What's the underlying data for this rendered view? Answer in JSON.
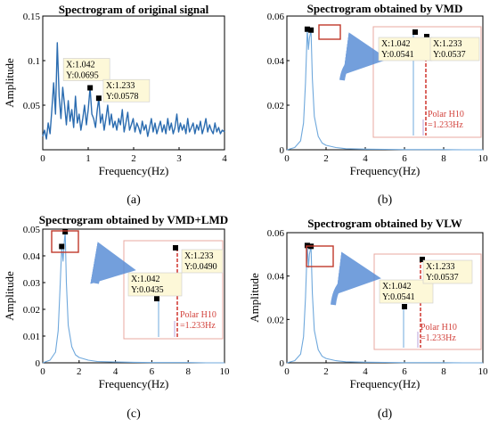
{
  "chart_data": [
    {
      "id": "a",
      "type": "line",
      "panel_label": "(a)",
      "title": "Spectrogram of original signal",
      "xlabel": "Frequency(Hz)",
      "ylabel": "Amplitude",
      "xlim": [
        0,
        4
      ],
      "ylim": [
        0,
        0.15
      ],
      "xticks": [
        0,
        1,
        2,
        3,
        4
      ],
      "xtick_labels": [
        "0",
        "1",
        "2",
        "3",
        "4"
      ],
      "yticks": [
        0.05,
        0.1,
        0.15
      ],
      "ytick_labels": [
        "0.05",
        "0.1",
        "0.15"
      ],
      "grid": false,
      "series": [
        {
          "color": "#2b6cb0",
          "x": [
            0,
            0.04,
            0.08,
            0.12,
            0.16,
            0.2,
            0.24,
            0.28,
            0.32,
            0.36,
            0.4,
            0.44,
            0.48,
            0.52,
            0.56,
            0.6,
            0.64,
            0.68,
            0.72,
            0.76,
            0.8,
            0.84,
            0.88,
            0.92,
            0.96,
            1.0,
            1.042,
            1.08,
            1.12,
            1.16,
            1.2,
            1.233,
            1.27,
            1.31,
            1.35,
            1.39,
            1.43,
            1.47,
            1.51,
            1.55,
            1.59,
            1.63,
            1.67,
            1.71,
            1.75,
            1.79,
            1.83,
            1.87,
            1.91,
            1.95,
            1.99,
            2.03,
            2.07,
            2.11,
            2.15,
            2.19,
            2.23,
            2.27,
            2.31,
            2.35,
            2.39,
            2.43,
            2.47,
            2.51,
            2.55,
            2.59,
            2.63,
            2.67,
            2.71,
            2.75,
            2.79,
            2.83,
            2.87,
            2.91,
            2.95,
            2.99,
            3.03,
            3.07,
            3.11,
            3.15,
            3.19,
            3.23,
            3.27,
            3.31,
            3.35,
            3.39,
            3.43,
            3.47,
            3.51,
            3.55,
            3.59,
            3.63,
            3.67,
            3.71,
            3.75,
            3.79,
            3.83,
            3.87,
            3.91,
            3.95,
            4.0
          ],
          "y": [
            0.015,
            0.022,
            0.012,
            0.03,
            0.018,
            0.045,
            0.075,
            0.04,
            0.12,
            0.06,
            0.035,
            0.07,
            0.05,
            0.028,
            0.055,
            0.032,
            0.045,
            0.025,
            0.06,
            0.03,
            0.04,
            0.022,
            0.035,
            0.05,
            0.028,
            0.045,
            0.0695,
            0.04,
            0.035,
            0.025,
            0.045,
            0.0578,
            0.03,
            0.04,
            0.022,
            0.035,
            0.05,
            0.028,
            0.04,
            0.025,
            0.032,
            0.022,
            0.035,
            0.028,
            0.045,
            0.02,
            0.03,
            0.042,
            0.022,
            0.028,
            0.035,
            0.02,
            0.03,
            0.025,
            0.018,
            0.032,
            0.022,
            0.028,
            0.015,
            0.025,
            0.035,
            0.02,
            0.03,
            0.018,
            0.025,
            0.032,
            0.02,
            0.028,
            0.018,
            0.035,
            0.022,
            0.03,
            0.018,
            0.025,
            0.04,
            0.02,
            0.03,
            0.022,
            0.028,
            0.018,
            0.035,
            0.02,
            0.025,
            0.03,
            0.018,
            0.028,
            0.022,
            0.032,
            0.018,
            0.025,
            0.035,
            0.02,
            0.028,
            0.022,
            0.018,
            0.03,
            0.02,
            0.025,
            0.018,
            0.022,
            0.02
          ]
        }
      ],
      "markers": [
        {
          "x": 1.042,
          "y": 0.0695,
          "label_x": "X:1.042",
          "label_y": "Y:0.0695"
        },
        {
          "x": 1.233,
          "y": 0.0578,
          "label_x": "X:1.233",
          "label_y": "Y:0.0578"
        }
      ]
    },
    {
      "id": "b",
      "type": "line",
      "panel_label": "(b)",
      "title": "Spectrogram obtained by VMD",
      "xlabel": "Frequency(Hz)",
      "ylabel": "",
      "xlim": [
        0,
        10
      ],
      "ylim": [
        0,
        0.06
      ],
      "xticks": [
        0,
        2,
        4,
        6,
        8,
        10
      ],
      "xtick_labels": [
        "0",
        "2",
        "4",
        "6",
        "8",
        "10"
      ],
      "yticks": [
        0,
        0.02,
        0.04,
        0.06
      ],
      "ytick_labels": [
        "0",
        "0.02",
        "0.04",
        "0.06"
      ],
      "grid": false,
      "series": [
        {
          "color": "#6fa8dc",
          "x": [
            0,
            0.4,
            0.7,
            0.85,
            0.95,
            1.042,
            1.1,
            1.15,
            1.233,
            1.3,
            1.4,
            1.6,
            1.8,
            2.0,
            2.5,
            3,
            4,
            5,
            6,
            7,
            8,
            9,
            10
          ],
          "y": [
            0,
            0.001,
            0.004,
            0.012,
            0.03,
            0.0541,
            0.045,
            0.05,
            0.0537,
            0.032,
            0.015,
            0.006,
            0.003,
            0.002,
            0.001,
            0.0005,
            0.0003,
            0.0002,
            0.0001,
            0.0001,
            0.0001,
            0,
            0
          ]
        }
      ],
      "markers": [
        {
          "x": 1.042,
          "y": 0.0541
        },
        {
          "x": 1.233,
          "y": 0.0537
        }
      ],
      "inset": {
        "label1_x": "X:1.042",
        "label1_y": "Y:0.0541",
        "label2_x": "X:1.233",
        "label2_y": "Y:0.0537",
        "polar_line1": "Polar H10",
        "polar_line2": "=1.233Hz"
      }
    },
    {
      "id": "c",
      "type": "line",
      "panel_label": "(c)",
      "title": "Spectrogram obtained by VMD+LMD",
      "xlabel": "Frequency(Hz)",
      "ylabel": "Amplitude",
      "xlim": [
        0,
        10
      ],
      "ylim": [
        0,
        0.05
      ],
      "xticks": [
        0,
        2,
        4,
        6,
        8,
        10
      ],
      "xtick_labels": [
        "0",
        "2",
        "4",
        "6",
        "8",
        "10"
      ],
      "yticks": [
        0,
        0.01,
        0.02,
        0.03,
        0.04,
        0.05
      ],
      "ytick_labels": [
        "0",
        "0.01",
        "0.02",
        "0.03",
        "0.04",
        "0.05"
      ],
      "grid": false,
      "series": [
        {
          "color": "#6fa8dc",
          "x": [
            0,
            0.4,
            0.7,
            0.85,
            0.95,
            1.042,
            1.12,
            1.18,
            1.233,
            1.3,
            1.4,
            1.6,
            1.8,
            2.0,
            2.5,
            3,
            4,
            5,
            6,
            7,
            8,
            9,
            10
          ],
          "y": [
            0,
            0.001,
            0.004,
            0.012,
            0.028,
            0.0435,
            0.038,
            0.045,
            0.049,
            0.03,
            0.014,
            0.006,
            0.003,
            0.002,
            0.001,
            0.0005,
            0.0003,
            0.0002,
            0.0001,
            0.0001,
            0.0001,
            0,
            0
          ]
        }
      ],
      "markers": [
        {
          "x": 1.042,
          "y": 0.0435
        },
        {
          "x": 1.233,
          "y": 0.049
        }
      ],
      "inset": {
        "label1_x": "X:1.042",
        "label1_y": "Y:0.0435",
        "label2_x": "X:1.233",
        "label2_y": "Y:0.0490",
        "polar_line1": "Polar H10",
        "polar_line2": "=1.233Hz"
      }
    },
    {
      "id": "d",
      "type": "line",
      "panel_label": "(d)",
      "title": "Spectrogram obtained by VLW",
      "xlabel": "Frequency(Hz)",
      "ylabel": "Amplitude",
      "xlim": [
        0,
        10
      ],
      "ylim": [
        0,
        0.06
      ],
      "xticks": [
        0,
        2,
        4,
        6,
        8,
        10
      ],
      "xtick_labels": [
        "0",
        "2",
        "4",
        "6",
        "8",
        "10"
      ],
      "yticks": [
        0,
        0.02,
        0.04,
        0.06
      ],
      "ytick_labels": [
        "0",
        "0.02",
        "0.04",
        "0.06"
      ],
      "grid": false,
      "series": [
        {
          "color": "#6fa8dc",
          "x": [
            0,
            0.4,
            0.7,
            0.85,
            0.95,
            1.042,
            1.1,
            1.15,
            1.233,
            1.3,
            1.4,
            1.6,
            1.8,
            2.0,
            2.5,
            3,
            4,
            5,
            6,
            7,
            8,
            9,
            10
          ],
          "y": [
            0,
            0.001,
            0.004,
            0.012,
            0.03,
            0.0541,
            0.044,
            0.05,
            0.0537,
            0.032,
            0.015,
            0.006,
            0.003,
            0.002,
            0.001,
            0.0005,
            0.0003,
            0.0002,
            0.0001,
            0.0001,
            0.0001,
            0,
            0
          ]
        }
      ],
      "markers": [
        {
          "x": 1.042,
          "y": 0.0541
        },
        {
          "x": 1.233,
          "y": 0.0537
        }
      ],
      "inset": {
        "label1_x": "X:1.042",
        "label1_y": "Y:0.0541",
        "label2_x": "X:1.233",
        "label2_y": "Y:0.0537",
        "polar_line1": "Polar H10",
        "polar_line2": "=1.233Hz"
      }
    }
  ],
  "colors": {
    "line_original": "#2b6cb0",
    "line_decomposed": "#6fa8dc",
    "callout_box": "#c0392b",
    "inset_border": "#e8a9a0",
    "tip_fill": "#fdf8d8",
    "polar": "#d2403a",
    "arrow": "#5b8fd6"
  }
}
